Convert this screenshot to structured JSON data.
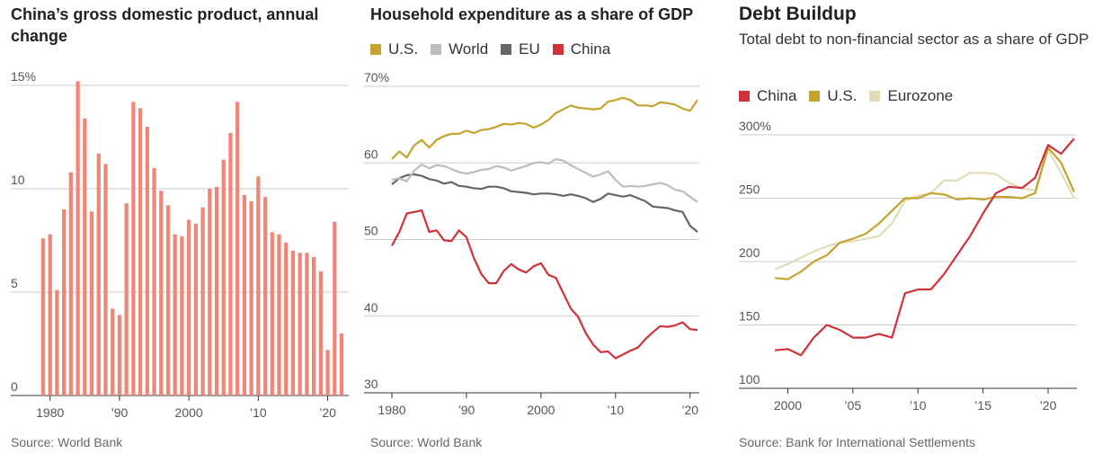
{
  "chart_data": [
    {
      "type": "bar",
      "title": "China’s gross domestic product, annual change",
      "x": [
        1979,
        1980,
        1981,
        1982,
        1983,
        1984,
        1985,
        1986,
        1987,
        1988,
        1989,
        1990,
        1991,
        1992,
        1993,
        1994,
        1995,
        1996,
        1997,
        1998,
        1999,
        2000,
        2001,
        2002,
        2003,
        2004,
        2005,
        2006,
        2007,
        2008,
        2009,
        2010,
        2011,
        2012,
        2013,
        2014,
        2015,
        2016,
        2017,
        2018,
        2019,
        2020,
        2021,
        2022
      ],
      "values": [
        7.6,
        7.8,
        5.1,
        9.0,
        10.8,
        15.2,
        13.4,
        8.9,
        11.7,
        11.2,
        4.2,
        3.9,
        9.3,
        14.2,
        13.9,
        13.0,
        11.0,
        9.9,
        9.2,
        7.8,
        7.7,
        8.5,
        8.3,
        9.1,
        10.0,
        10.1,
        11.4,
        12.7,
        14.2,
        9.7,
        9.4,
        10.6,
        9.6,
        7.9,
        7.8,
        7.4,
        7.0,
        6.9,
        6.9,
        6.7,
        6.0,
        2.2,
        8.4,
        3.0
      ],
      "color": "#ef8677",
      "xlim": [
        1979,
        2022
      ],
      "xticks": [
        1980,
        {
          "value": 1990,
          "label": "’90"
        },
        2000,
        {
          "value": 2010,
          "label": "’10"
        },
        {
          "value": 2020,
          "label": "’20"
        }
      ],
      "ylim": [
        0,
        15
      ],
      "yticks": [
        0,
        5,
        10,
        {
          "value": 15,
          "label": "15%"
        }
      ],
      "grid": true,
      "source": "Source: World Bank"
    },
    {
      "type": "line",
      "title": "Household expenditure as a share of GDP",
      "x": [
        1980,
        1981,
        1982,
        1983,
        1984,
        1985,
        1986,
        1987,
        1988,
        1989,
        1990,
        1991,
        1992,
        1993,
        1994,
        1995,
        1996,
        1997,
        1998,
        1999,
        2000,
        2001,
        2002,
        2003,
        2004,
        2005,
        2006,
        2007,
        2008,
        2009,
        2010,
        2011,
        2012,
        2013,
        2014,
        2015,
        2016,
        2017,
        2018,
        2019,
        2020,
        2021
      ],
      "series": [
        {
          "name": "U.S.",
          "color": "#c4a32f",
          "values": [
            60.5,
            61.5,
            60.7,
            62.3,
            63.0,
            62.0,
            63.0,
            63.5,
            63.8,
            63.8,
            64.2,
            63.9,
            64.3,
            64.4,
            64.7,
            65.1,
            65.0,
            65.2,
            65.1,
            64.6,
            65.0,
            65.6,
            66.5,
            67.0,
            67.5,
            67.2,
            67.1,
            67.0,
            67.1,
            68.0,
            68.2,
            68.5,
            68.2,
            67.5,
            67.5,
            67.4,
            67.9,
            67.8,
            67.6,
            67.1,
            66.8,
            68.2
          ]
        },
        {
          "name": "World",
          "color": "#bdbdbd",
          "values": [
            57.8,
            58.0,
            57.6,
            59.0,
            59.8,
            59.3,
            59.7,
            59.6,
            59.2,
            58.8,
            58.6,
            58.8,
            59.1,
            59.2,
            59.6,
            59.4,
            59.0,
            59.3,
            59.6,
            60.0,
            60.1,
            59.9,
            60.5,
            60.3,
            59.7,
            59.2,
            58.7,
            58.2,
            58.5,
            58.9,
            57.8,
            56.9,
            57.0,
            56.9,
            57.0,
            57.2,
            57.4,
            57.1,
            56.5,
            56.3,
            55.6,
            54.9
          ]
        },
        {
          "name": "EU",
          "color": "#666666",
          "values": [
            57.2,
            58.0,
            58.4,
            58.5,
            58.3,
            57.9,
            57.7,
            57.3,
            57.5,
            57.0,
            56.9,
            56.7,
            56.6,
            56.9,
            56.9,
            56.7,
            56.3,
            56.2,
            56.1,
            55.9,
            56.0,
            56.0,
            55.9,
            55.7,
            55.9,
            55.7,
            55.4,
            54.9,
            55.3,
            56.0,
            55.8,
            55.6,
            55.8,
            55.4,
            55.0,
            54.3,
            54.2,
            54.1,
            53.8,
            53.6,
            51.8,
            51.0
          ]
        },
        {
          "name": "China",
          "color": "#d0323a",
          "values": [
            49.2,
            51.0,
            53.4,
            53.6,
            53.8,
            51.0,
            51.2,
            49.9,
            49.8,
            51.2,
            50.3,
            47.6,
            45.5,
            44.3,
            44.3,
            45.9,
            46.8,
            46.1,
            45.7,
            46.5,
            46.9,
            45.4,
            45.0,
            43.0,
            41.0,
            39.9,
            37.8,
            36.3,
            35.3,
            35.4,
            34.5,
            35.0,
            35.5,
            35.9,
            37.0,
            37.9,
            38.7,
            38.6,
            38.8,
            39.2,
            38.3,
            38.2
          ]
        }
      ],
      "xlim": [
        1980,
        2021
      ],
      "xticks": [
        1980,
        {
          "value": 1990,
          "label": "’90"
        },
        2000,
        {
          "value": 2010,
          "label": "’10"
        },
        {
          "value": 2020,
          "label": "’20"
        }
      ],
      "ylim": [
        30,
        70
      ],
      "yticks": [
        30,
        40,
        50,
        60,
        {
          "value": 70,
          "label": "70%"
        }
      ],
      "grid": true,
      "source": "Source: World Bank"
    },
    {
      "type": "line",
      "title": "Debt Buildup",
      "subtitle": "Total debt to non-financial sector as a share of GDP",
      "x": [
        1999,
        2000,
        2001,
        2002,
        2003,
        2004,
        2005,
        2006,
        2007,
        2008,
        2009,
        2010,
        2011,
        2012,
        2013,
        2014,
        2015,
        2016,
        2017,
        2018,
        2019,
        2020,
        2021,
        2022
      ],
      "series": [
        {
          "name": "China",
          "color": "#d0323a",
          "values": [
            130,
            131,
            126,
            140,
            150,
            146,
            140,
            140,
            143,
            140,
            175,
            178,
            178,
            190,
            205,
            220,
            238,
            254,
            259,
            258,
            266,
            292,
            285,
            297
          ]
        },
        {
          "name": "U.S.",
          "color": "#c4a32f",
          "values": [
            187,
            186,
            192,
            200,
            205,
            215,
            218,
            222,
            230,
            240,
            250,
            250,
            254,
            253,
            249,
            250,
            249,
            251,
            251,
            250,
            254,
            290,
            278,
            255
          ]
        },
        {
          "name": "Eurozone",
          "color": "#e3dcb8",
          "values": [
            194,
            198,
            203,
            208,
            212,
            215,
            216,
            218,
            220,
            230,
            248,
            252,
            254,
            264,
            264,
            270,
            270,
            269,
            262,
            258,
            256,
            288,
            270,
            250
          ]
        }
      ],
      "xlim": [
        1999,
        2022
      ],
      "xticks": [
        2000,
        {
          "value": 2005,
          "label": "’05"
        },
        {
          "value": 2010,
          "label": "’10"
        },
        {
          "value": 2015,
          "label": "’15"
        },
        {
          "value": 2020,
          "label": "’20"
        }
      ],
      "ylim": [
        100,
        300
      ],
      "yticks": [
        100,
        150,
        200,
        250,
        {
          "value": 300,
          "label": "300%"
        }
      ],
      "grid": true,
      "source": "Source: Bank for International Settlements"
    }
  ]
}
